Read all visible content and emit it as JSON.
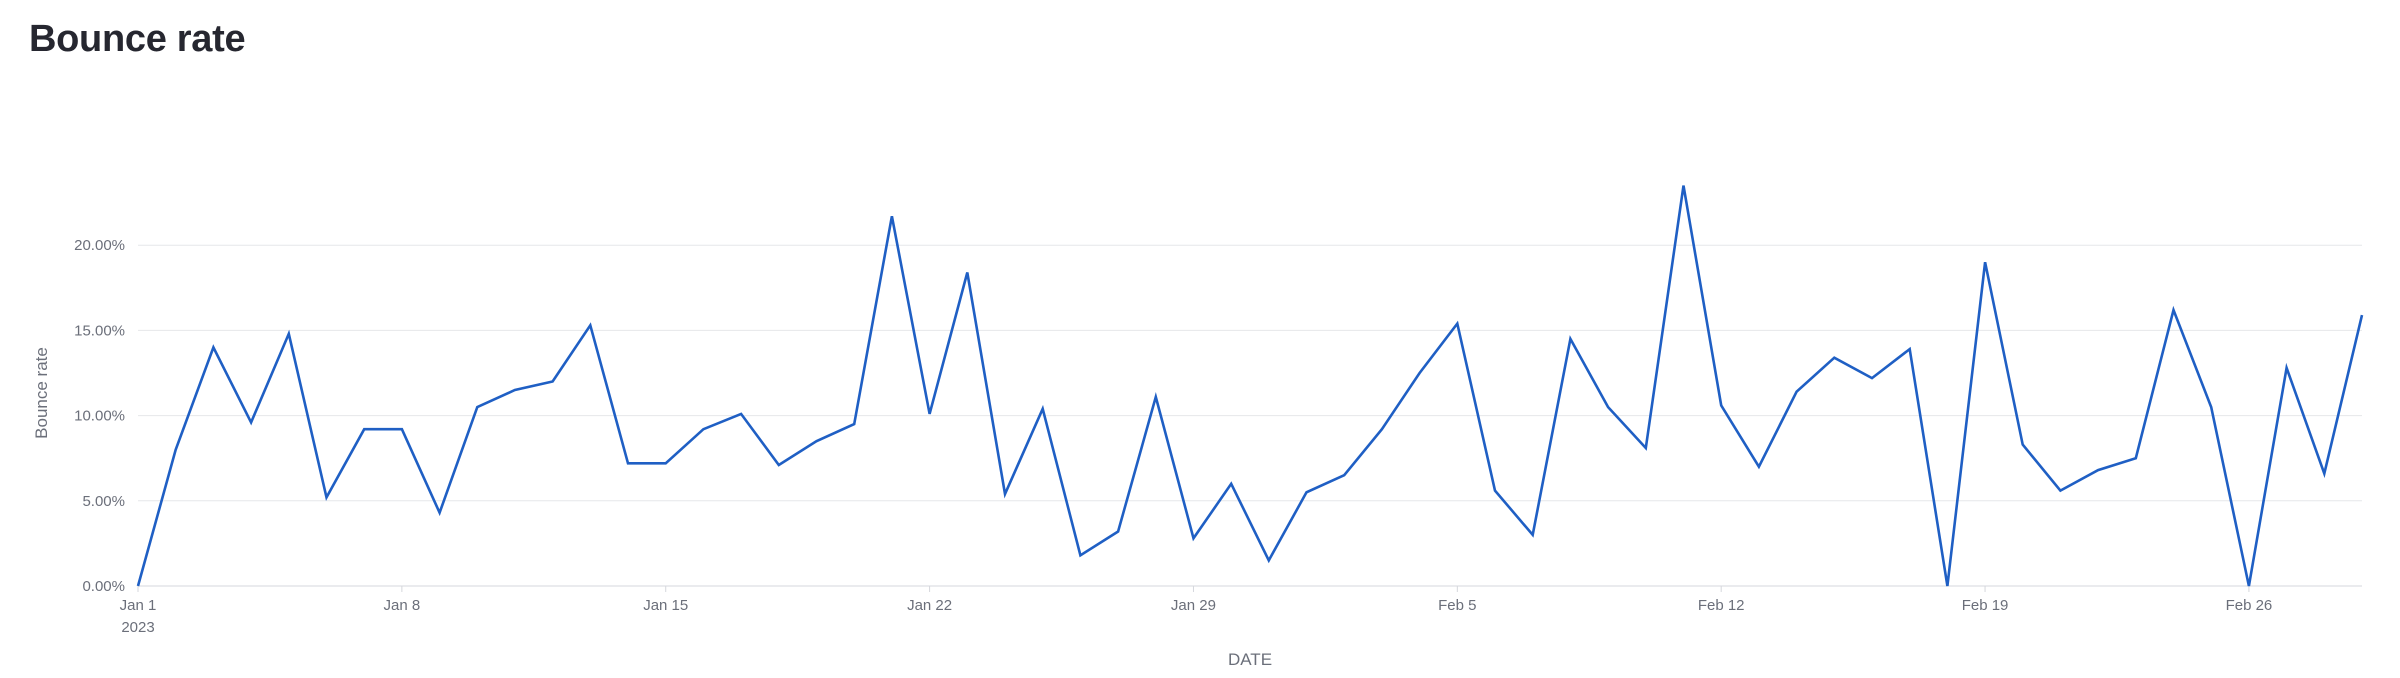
{
  "page": {
    "title": "Bounce rate"
  },
  "chart_data": {
    "type": "line",
    "title": "Bounce rate",
    "xlabel": "DATE",
    "ylabel": "Bounce rate",
    "x_tick_labels": [
      "Jan 1",
      "Jan 8",
      "Jan 15",
      "Jan 22",
      "Jan 29",
      "Feb 5",
      "Feb 12",
      "Feb 19",
      "Feb 26"
    ],
    "x_tick_sublabel": "2023",
    "y_tick_labels": [
      "0.00%",
      "5.00%",
      "10.00%",
      "15.00%",
      "20.00%"
    ],
    "ylim": [
      0,
      0.25
    ],
    "xlim": [
      "2023-01-01",
      "2023-03-01"
    ],
    "grid": true,
    "line_color": "#1f5fc4",
    "x": [
      "2023-01-01",
      "2023-01-02",
      "2023-01-03",
      "2023-01-04",
      "2023-01-05",
      "2023-01-06",
      "2023-01-07",
      "2023-01-08",
      "2023-01-09",
      "2023-01-10",
      "2023-01-11",
      "2023-01-12",
      "2023-01-13",
      "2023-01-14",
      "2023-01-15",
      "2023-01-16",
      "2023-01-17",
      "2023-01-18",
      "2023-01-19",
      "2023-01-20",
      "2023-01-21",
      "2023-01-22",
      "2023-01-23",
      "2023-01-24",
      "2023-01-25",
      "2023-01-26",
      "2023-01-27",
      "2023-01-28",
      "2023-01-29",
      "2023-01-30",
      "2023-01-31",
      "2023-02-01",
      "2023-02-02",
      "2023-02-03",
      "2023-02-04",
      "2023-02-05",
      "2023-02-06",
      "2023-02-07",
      "2023-02-08",
      "2023-02-09",
      "2023-02-10",
      "2023-02-11",
      "2023-02-12",
      "2023-02-13",
      "2023-02-14",
      "2023-02-15",
      "2023-02-16",
      "2023-02-17",
      "2023-02-18",
      "2023-02-19",
      "2023-02-20",
      "2023-02-21",
      "2023-02-22",
      "2023-02-23",
      "2023-02-24",
      "2023-02-25",
      "2023-02-26",
      "2023-02-27",
      "2023-02-28",
      "2023-03-01"
    ],
    "y": [
      0.0,
      0.08,
      0.14,
      0.096,
      0.148,
      0.052,
      0.092,
      0.092,
      0.043,
      0.105,
      0.115,
      0.12,
      0.153,
      0.072,
      0.072,
      0.092,
      0.101,
      0.071,
      0.085,
      0.095,
      0.217,
      0.101,
      0.184,
      0.054,
      0.104,
      0.018,
      0.032,
      0.111,
      0.028,
      0.06,
      0.015,
      0.055,
      0.065,
      0.092,
      0.125,
      0.154,
      0.056,
      0.03,
      0.145,
      0.105,
      0.081,
      0.235,
      0.106,
      0.07,
      0.114,
      0.134,
      0.122,
      0.139,
      0.0,
      0.19,
      0.083,
      0.056,
      0.068,
      0.075,
      0.162,
      0.105,
      0.0,
      0.128,
      0.066,
      0.159
    ]
  }
}
